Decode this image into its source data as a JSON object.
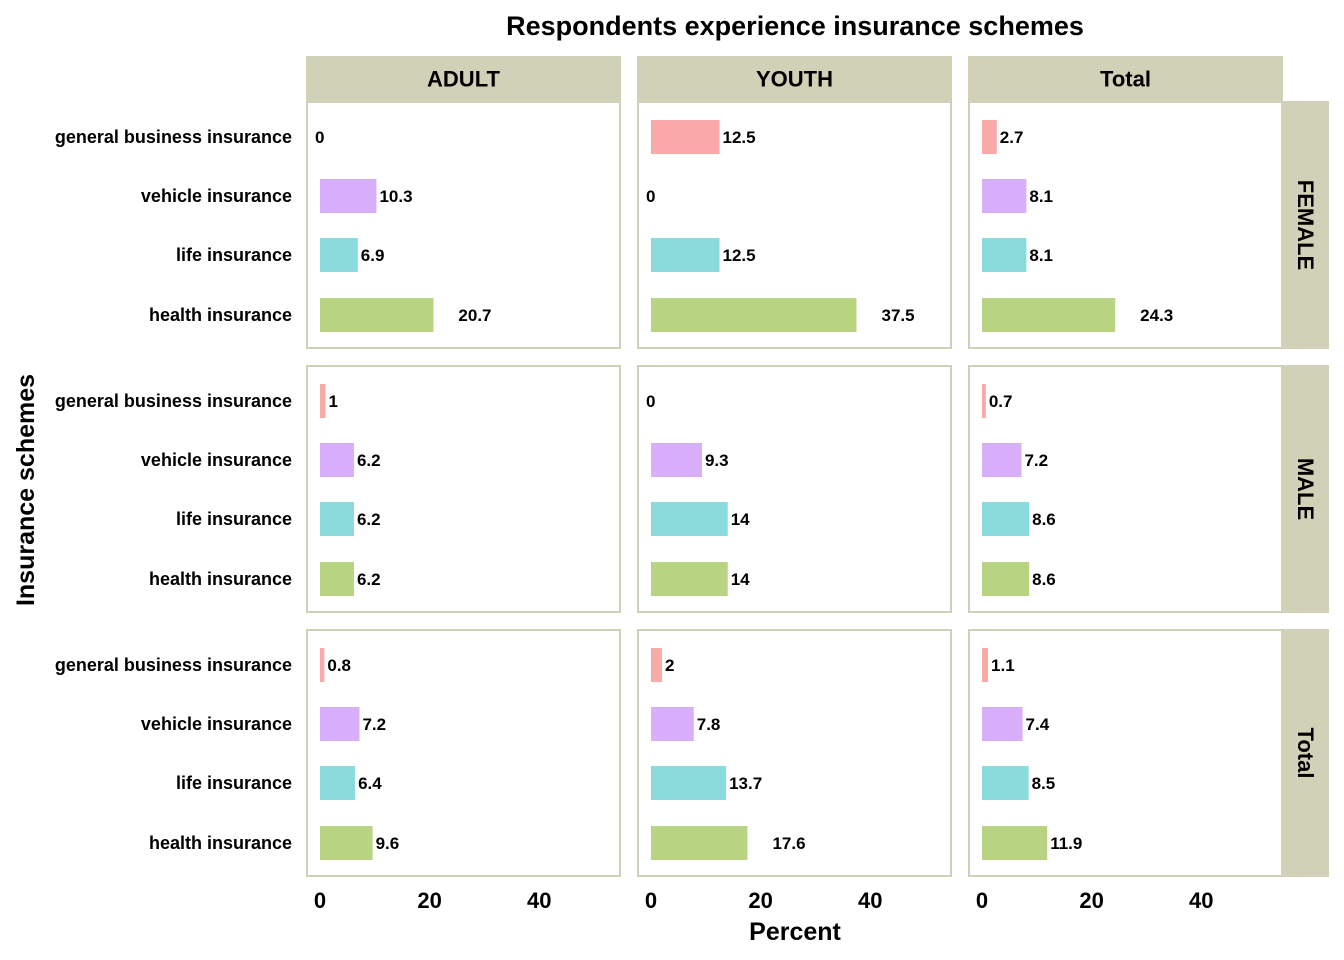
{
  "chart_data": {
    "type": "bar",
    "orientation": "horizontal",
    "faceted": true,
    "title": "Respondents experience insurance schemes",
    "xlabel": "Percent",
    "ylabel": "Insurance schemes",
    "xlim": [
      0,
      55
    ],
    "xticks": [
      0,
      20,
      40
    ],
    "grid": false,
    "legend": "none",
    "col_facets": [
      "ADULT",
      "YOUTH",
      "Total"
    ],
    "row_facets": [
      "FEMALE",
      "MALE",
      "Total"
    ],
    "categories": [
      "general business insurance",
      "vehicle insurance",
      "life insurance",
      "health insurance"
    ],
    "category_colors": [
      "#F8A9A8",
      "#D9AEFA",
      "#8ADBDC",
      "#B8D482"
    ],
    "colors": {
      "strip_fill": "#D1D1B7",
      "panel_border": "#D1D1B7"
    },
    "values": [
      [
        [
          0,
          10.3,
          6.9,
          20.7
        ],
        [
          12.5,
          0,
          12.5,
          37.5
        ],
        [
          2.7,
          8.1,
          8.1,
          24.3
        ]
      ],
      [
        [
          1,
          6.2,
          6.2,
          6.2
        ],
        [
          0,
          9.3,
          14,
          14
        ],
        [
          0.7,
          7.2,
          8.6,
          8.6
        ]
      ],
      [
        [
          0.8,
          7.2,
          6.4,
          9.6
        ],
        [
          2,
          7.8,
          13.7,
          17.6
        ],
        [
          1.1,
          7.4,
          8.5,
          11.9
        ]
      ]
    ]
  }
}
